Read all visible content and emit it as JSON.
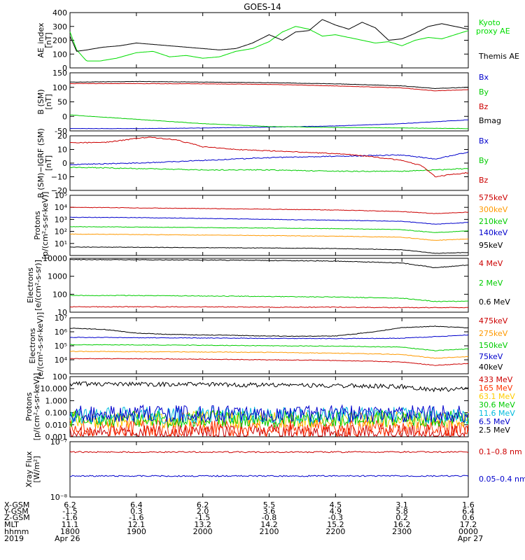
{
  "title": "GOES-14",
  "chart_data": [
    {
      "type": "line",
      "panel": "ae-index",
      "ylabel": [
        "AE_index",
        "[nT]"
      ],
      "ylim": [
        0,
        400
      ],
      "yticks": [
        "0",
        "100",
        "200",
        "300",
        "400"
      ],
      "yscale": "linear",
      "series": [
        {
          "name": "Kyoto",
          "name2": "proxy AE",
          "color": "#00dd00",
          "x": [
            0,
            0.1,
            0.25,
            0.45,
            0.7,
            1.0,
            1.25,
            1.5,
            1.75,
            2.0,
            2.25,
            2.5,
            2.75,
            3.0,
            3.2,
            3.4,
            3.6,
            3.8,
            4.0,
            4.2,
            4.4,
            4.6,
            4.8,
            5.0,
            5.2,
            5.4,
            5.6,
            5.8,
            6.0
          ],
          "values": [
            260,
            130,
            50,
            50,
            70,
            110,
            120,
            80,
            90,
            70,
            80,
            120,
            140,
            190,
            260,
            300,
            280,
            230,
            240,
            220,
            200,
            180,
            190,
            160,
            200,
            220,
            210,
            240,
            270
          ]
        },
        {
          "name": "Themis AE",
          "color": "#000000",
          "x": [
            0,
            0.1,
            0.25,
            0.5,
            0.75,
            1.0,
            1.25,
            1.5,
            1.75,
            2.0,
            2.25,
            2.5,
            2.75,
            3.0,
            3.2,
            3.4,
            3.6,
            3.8,
            4.0,
            4.2,
            4.4,
            4.6,
            4.8,
            5.0,
            5.2,
            5.4,
            5.6,
            5.8,
            6.0
          ],
          "values": [
            230,
            120,
            130,
            150,
            160,
            180,
            170,
            160,
            150,
            140,
            130,
            140,
            180,
            240,
            200,
            260,
            270,
            350,
            310,
            280,
            330,
            290,
            200,
            210,
            250,
            300,
            320,
            300,
            280
          ]
        }
      ]
    },
    {
      "type": "line",
      "panel": "b-sm",
      "ylabel": [
        "B (SM)",
        "[nT]"
      ],
      "ylim": [
        -50,
        150
      ],
      "yticks": [
        "-50",
        "0",
        "50",
        "100",
        "150"
      ],
      "yscale": "linear",
      "series": [
        {
          "name": "Bx",
          "color": "#0000cc",
          "x": [
            0,
            1,
            2,
            3,
            4,
            5,
            6
          ],
          "values": [
            -42,
            -42,
            -40,
            -37,
            -33,
            -25,
            -12
          ]
        },
        {
          "name": "By",
          "color": "#00cc00",
          "x": [
            0,
            1,
            2,
            3,
            4,
            5,
            6
          ],
          "values": [
            5,
            -10,
            -25,
            -35,
            -38,
            -40,
            -42
          ]
        },
        {
          "name": "Bz",
          "color": "#cc0000",
          "x": [
            0,
            1,
            2,
            3,
            4,
            5,
            5.5,
            6
          ],
          "values": [
            113,
            113,
            112,
            110,
            105,
            98,
            88,
            92
          ]
        },
        {
          "name": "Bmag",
          "color": "#000000",
          "x": [
            0,
            1,
            2,
            3,
            4,
            5,
            5.5,
            6
          ],
          "values": [
            118,
            120,
            118,
            116,
            112,
            105,
            96,
            100
          ]
        }
      ]
    },
    {
      "type": "line",
      "panel": "b-igrf",
      "ylabel": [
        "B (SM)−IGRF (SM)",
        "[nT]"
      ],
      "ylim": [
        -20,
        20
      ],
      "yticks": [
        "−20",
        "−10",
        "0",
        "10",
        "20"
      ],
      "yscale": "linear",
      "series": [
        {
          "name": "Bx",
          "color": "#0000cc",
          "x": [
            0,
            1,
            2,
            3,
            4,
            5,
            5.5,
            6
          ],
          "values": [
            -1,
            0,
            2,
            4,
            5,
            6,
            3,
            8
          ]
        },
        {
          "name": "By",
          "color": "#00cc00",
          "x": [
            0,
            1,
            2,
            3,
            4,
            5,
            5.5,
            6
          ],
          "values": [
            -3,
            -4,
            -5,
            -5,
            -6,
            -6,
            -5,
            -4
          ]
        },
        {
          "name": "Bz",
          "color": "#cc0000",
          "x": [
            0,
            0.5,
            1.0,
            1.2,
            1.6,
            2.0,
            2.5,
            3.0,
            3.5,
            4.0,
            4.5,
            5.0,
            5.3,
            5.5,
            5.8,
            6.0
          ],
          "values": [
            15,
            15,
            18,
            19,
            17,
            12,
            10,
            9,
            8,
            7,
            5,
            2,
            -2,
            -10,
            -8,
            -7
          ]
        }
      ]
    },
    {
      "type": "line",
      "panel": "protons-mev",
      "ylabel": [
        "Protons",
        "[p/(cm²-s-sr-keV)]"
      ],
      "ylim": [
        10,
        1000000
      ],
      "yticks": [
        "10¹",
        "10²",
        "10³",
        "10⁴",
        "10⁵"
      ],
      "yscale": "log",
      "series": [
        {
          "name": "575keV",
          "color": "#cc0000",
          "x": [
            0,
            1,
            2,
            3,
            4,
            5,
            5.5,
            6
          ],
          "values": [
            100000,
            90000,
            80000,
            70000,
            60000,
            45000,
            30000,
            40000
          ]
        },
        {
          "name": "300keV",
          "color": "#ff9900",
          "x": [
            0,
            1,
            2,
            3,
            4,
            5,
            5.5,
            6
          ],
          "values": [
            600,
            550,
            500,
            450,
            400,
            330,
            180,
            240
          ]
        },
        {
          "name": "210keV",
          "color": "#00cc00",
          "x": [
            0,
            1,
            2,
            3,
            4,
            5,
            5.5,
            6
          ],
          "values": [
            2500,
            2300,
            2100,
            1900,
            1700,
            1400,
            800,
            1100
          ]
        },
        {
          "name": "140keV",
          "color": "#0000cc",
          "x": [
            0,
            1,
            2,
            3,
            4,
            5,
            5.5,
            6
          ],
          "values": [
            15000,
            14000,
            12000,
            10000,
            8500,
            7000,
            4000,
            5500
          ]
        },
        {
          "name": "95keV",
          "color": "#000000",
          "x": [
            0,
            1,
            2,
            3,
            4,
            5,
            5.5,
            6
          ],
          "values": [
            50,
            48,
            45,
            42,
            38,
            30,
            15,
            18
          ]
        }
      ]
    },
    {
      "type": "line",
      "panel": "electrons-mev",
      "ylabel": [
        "Electrons",
        "[e/(cm²-s-sr)]"
      ],
      "ylim": [
        10,
        10000
      ],
      "yticks": [
        "10",
        "100",
        "1000",
        "10000"
      ],
      "yscale": "log",
      "series": [
        {
          "name": "4 MeV",
          "color": "#cc0000",
          "x": [
            0,
            1,
            2,
            3,
            4,
            5,
            6
          ],
          "values": [
            20,
            20,
            20,
            19,
            19,
            18,
            18
          ]
        },
        {
          "name": "2 MeV",
          "color": "#00cc00",
          "x": [
            0,
            1,
            2,
            3,
            4,
            5,
            5.5,
            6
          ],
          "values": [
            85,
            85,
            80,
            75,
            70,
            60,
            40,
            40
          ]
        },
        {
          "name": "0.6 MeV",
          "color": "#000000",
          "x": [
            0,
            1,
            2,
            3,
            4,
            5,
            5.5,
            6
          ],
          "values": [
            8500,
            8300,
            8000,
            7600,
            7000,
            5500,
            3000,
            4300
          ]
        }
      ]
    },
    {
      "type": "line",
      "panel": "electrons-kev",
      "ylabel": [
        "Electrons",
        "[e/(cm²-s-sr-keV)]"
      ],
      "ylim": [
        1000,
        10000000
      ],
      "yticks": [
        "10⁴",
        "10⁵",
        "10⁶",
        "10⁷"
      ],
      "yscale": "log",
      "series": [
        {
          "name": "475keV",
          "color": "#cc0000",
          "x": [
            0,
            1,
            2,
            3,
            4,
            5,
            5.5,
            6
          ],
          "values": [
            12000,
            12000,
            11000,
            10000,
            9000,
            7000,
            4000,
            5500
          ]
        },
        {
          "name": "275keV",
          "color": "#ff9900",
          "x": [
            0,
            1,
            2,
            3,
            4,
            5,
            5.5,
            6
          ],
          "values": [
            40000,
            38000,
            36000,
            34000,
            30000,
            24000,
            13000,
            17000
          ]
        },
        {
          "name": "150keV",
          "color": "#00cc00",
          "x": [
            0,
            1,
            2,
            3,
            4,
            5,
            5.5,
            6
          ],
          "values": [
            120000,
            115000,
            110000,
            100000,
            95000,
            80000,
            45000,
            60000
          ]
        },
        {
          "name": "75keV",
          "color": "#0000cc",
          "x": [
            0,
            1,
            2,
            3,
            4,
            5,
            5.5,
            6
          ],
          "values": [
            400000,
            380000,
            360000,
            340000,
            330000,
            350000,
            450000,
            600000
          ]
        },
        {
          "name": "40keV",
          "color": "#000000",
          "x": [
            0,
            0.5,
            1,
            1.5,
            2,
            2.5,
            3,
            3.5,
            4,
            4.5,
            5,
            5.5,
            6
          ],
          "values": [
            1800000,
            1500000,
            800000,
            650000,
            600000,
            550000,
            500000,
            480000,
            500000,
            900000,
            2000000,
            2500000,
            1900000
          ]
        }
      ]
    },
    {
      "type": "line",
      "panel": "protons-kev",
      "ylabel": [
        "Protons",
        "[p/(cm²-s-sr-keV)]"
      ],
      "ylim": [
        0.001,
        100
      ],
      "yticks": [
        "0.001",
        "0.010",
        "0.100",
        "1.000",
        "10.000",
        "100"
      ],
      "yscale": "log",
      "series": [
        {
          "name": "433 MeV",
          "color": "#cc0000",
          "x": [
            0,
            6
          ],
          "values": [
            0.002,
            0.002
          ]
        },
        {
          "name": "165 MeV",
          "color": "#ff3300",
          "x": [
            0,
            6
          ],
          "values": [
            0.005,
            0.005
          ]
        },
        {
          "name": "63.1 MeV",
          "color": "#ffcc00",
          "x": [
            0,
            6
          ],
          "values": [
            0.025,
            0.025
          ]
        },
        {
          "name": "30.6 MeV",
          "color": "#00cc00",
          "x": [
            0,
            6
          ],
          "values": [
            0.03,
            0.03
          ]
        },
        {
          "name": "11.6 MeV",
          "color": "#00bbdd",
          "x": [
            0,
            6
          ],
          "values": [
            0.06,
            0.06
          ]
        },
        {
          "name": "6.5 MeV",
          "color": "#0000cc",
          "x": [
            0,
            6
          ],
          "values": [
            0.08,
            0.08
          ]
        },
        {
          "name": "2.5 MeV",
          "color": "#000000",
          "x": [
            0,
            1,
            2,
            3,
            4,
            5,
            5.5,
            6
          ],
          "values": [
            25,
            24,
            22,
            20,
            18,
            15,
            8,
            10
          ]
        }
      ]
    },
    {
      "type": "line",
      "panel": "xray-flux",
      "ylabel": [
        "Xray Flux",
        "[W/m²]"
      ],
      "ylim": [
        1e-08,
        1e-07
      ],
      "yticks": [
        "10⁻⁸",
        "10⁻⁷"
      ],
      "yscale": "log",
      "series": [
        {
          "name": "0.1–0.8 nm",
          "color": "#cc0000",
          "x": [
            0,
            6
          ],
          "values": [
            6.5e-08,
            6.5e-08
          ]
        },
        {
          "name": "0.05–0.4 nm",
          "color": "#0000cc",
          "x": [
            0,
            6
          ],
          "values": [
            2.4e-08,
            2.4e-08
          ]
        }
      ]
    }
  ],
  "xaxis": {
    "row_labels": [
      "X-GSM",
      "Y-GSM",
      "Z-GSM",
      "MLT",
      "hhmm",
      "2019"
    ],
    "columns": [
      [
        "6.2",
        "-1.5",
        "-1.6",
        "11.1",
        "1800",
        "Apr 26"
      ],
      [
        "6.4",
        "0.3",
        "-1.6",
        "12.1",
        "1900",
        ""
      ],
      [
        "6.2",
        "2.0",
        "-1.5",
        "13.2",
        "2000",
        ""
      ],
      [
        "5.5",
        "3.6",
        "-0.8",
        "14.2",
        "2100",
        ""
      ],
      [
        "4.5",
        "4.9",
        "-0.3",
        "15.2",
        "2200",
        ""
      ],
      [
        "3.1",
        "5.8",
        "0.2",
        "16.2",
        "2300",
        ""
      ],
      [
        "1.6",
        "6.4",
        "0.6",
        "17.2",
        "0000",
        "Apr 27"
      ]
    ]
  }
}
